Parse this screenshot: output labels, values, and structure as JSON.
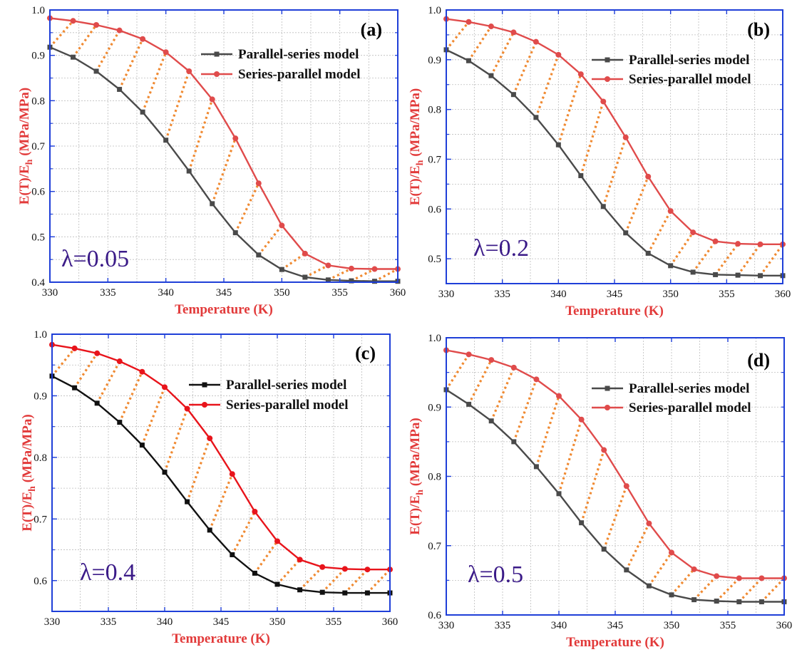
{
  "figure": {
    "colors": {
      "frame": "#1f3fd8",
      "parallel_series_dark": "#4a4a4a",
      "parallel_series_black": "#111111",
      "series_parallel_light": "#e04b4b",
      "series_parallel_bright": "#e8141b",
      "axis_title": "#e23a3a",
      "connector": "#f08a32",
      "lambda_text": "#3b1b88"
    }
  },
  "chart_data": [
    {
      "type": "line",
      "panel_label": "(a)",
      "lambda_label": "λ=0.05",
      "xlabel": "Temperature (K)",
      "ylabel_main": "E(T)/E",
      "ylabel_sub": "h",
      "ylabel_unit": " (MPa/MPa)",
      "xlim": [
        330,
        360
      ],
      "ylim": [
        0.4,
        1.0
      ],
      "xticks": [
        330,
        335,
        340,
        345,
        350,
        355,
        360
      ],
      "yticks": [
        0.4,
        0.5,
        0.6,
        0.7,
        0.8,
        0.9,
        1.0
      ],
      "yticks_minor": [
        0.4,
        0.45,
        0.5,
        0.55,
        0.6,
        0.65,
        0.7,
        0.75,
        0.8,
        0.85,
        0.9,
        0.95,
        1.0
      ],
      "grid": true,
      "legend_position": "top-right",
      "x": [
        330,
        332,
        334,
        336,
        338,
        340,
        342,
        344,
        346,
        348,
        350,
        352,
        354,
        356,
        358,
        360
      ],
      "series": [
        {
          "name": "Parallel-series model",
          "marker": "square",
          "color_key": "parallel_series_dark",
          "values": [
            0.918,
            0.896,
            0.865,
            0.825,
            0.775,
            0.713,
            0.645,
            0.573,
            0.509,
            0.46,
            0.428,
            0.411,
            0.405,
            0.403,
            0.402,
            0.402
          ]
        },
        {
          "name": "Series-parallel model",
          "marker": "circle",
          "color_key": "series_parallel_light",
          "values": [
            0.982,
            0.976,
            0.967,
            0.955,
            0.936,
            0.907,
            0.865,
            0.803,
            0.717,
            0.618,
            0.525,
            0.463,
            0.437,
            0.43,
            0.429,
            0.429
          ]
        }
      ]
    },
    {
      "type": "line",
      "panel_label": "(b)",
      "lambda_label": "λ=0.2",
      "xlabel": "Temperature (K)",
      "ylabel_main": "E(T)/E",
      "ylabel_sub": "h",
      "ylabel_unit": " (MPa/MPa)",
      "xlim": [
        330,
        360
      ],
      "ylim": [
        0.45,
        1.0
      ],
      "xticks": [
        330,
        335,
        340,
        345,
        350,
        355,
        360
      ],
      "yticks": [
        0.5,
        0.6,
        0.7,
        0.8,
        0.9,
        1.0
      ],
      "yticks_minor": [
        0.5,
        0.55,
        0.6,
        0.65,
        0.7,
        0.75,
        0.8,
        0.85,
        0.9,
        0.95,
        1.0
      ],
      "grid": true,
      "legend_position": "top-right",
      "x": [
        330,
        332,
        334,
        336,
        338,
        340,
        342,
        344,
        346,
        348,
        350,
        352,
        354,
        356,
        358,
        360
      ],
      "series": [
        {
          "name": "Parallel-series model",
          "marker": "square",
          "color_key": "parallel_series_dark",
          "values": [
            0.92,
            0.898,
            0.868,
            0.83,
            0.784,
            0.729,
            0.667,
            0.605,
            0.552,
            0.511,
            0.486,
            0.473,
            0.468,
            0.467,
            0.466,
            0.466
          ]
        },
        {
          "name": "Series-parallel model",
          "marker": "circle",
          "color_key": "series_parallel_light",
          "values": [
            0.982,
            0.976,
            0.967,
            0.955,
            0.936,
            0.91,
            0.871,
            0.816,
            0.744,
            0.665,
            0.596,
            0.553,
            0.535,
            0.53,
            0.529,
            0.529
          ]
        }
      ]
    },
    {
      "type": "line",
      "panel_label": "(c)",
      "lambda_label": "λ=0.4",
      "xlabel": "Temperature (K)",
      "ylabel_main": "E(T)/E",
      "ylabel_sub": "h",
      "ylabel_unit": " (MPa/MPa)",
      "xlim": [
        330,
        360
      ],
      "ylim": [
        0.55,
        1.0
      ],
      "xticks": [
        330,
        335,
        340,
        345,
        350,
        355,
        360
      ],
      "yticks": [
        0.6,
        0.7,
        0.8,
        0.9,
        1.0
      ],
      "yticks_minor": [
        0.55,
        0.6,
        0.65,
        0.7,
        0.75,
        0.8,
        0.85,
        0.9,
        0.95,
        1.0
      ],
      "grid": true,
      "legend_position": "top-right",
      "x": [
        330,
        332,
        334,
        336,
        338,
        340,
        342,
        344,
        346,
        348,
        350,
        352,
        354,
        356,
        358,
        360
      ],
      "series": [
        {
          "name": "Parallel-series model",
          "marker": "square",
          "color_key": "parallel_series_black",
          "values": [
            0.932,
            0.913,
            0.888,
            0.857,
            0.82,
            0.776,
            0.728,
            0.682,
            0.642,
            0.612,
            0.594,
            0.585,
            0.581,
            0.58,
            0.58,
            0.58
          ]
        },
        {
          "name": "Series-parallel model",
          "marker": "circle",
          "color_key": "series_parallel_bright",
          "values": [
            0.983,
            0.977,
            0.969,
            0.956,
            0.939,
            0.914,
            0.879,
            0.831,
            0.773,
            0.712,
            0.664,
            0.634,
            0.622,
            0.619,
            0.618,
            0.618
          ]
        }
      ]
    },
    {
      "type": "line",
      "panel_label": "(d)",
      "lambda_label": "λ=0.5",
      "xlabel": "Temperature (K)",
      "ylabel_main": "E(T)/E",
      "ylabel_sub": "h",
      "ylabel_unit": " (MPa/MPa)",
      "xlim": [
        330,
        360
      ],
      "ylim": [
        0.6,
        1.0
      ],
      "xticks": [
        330,
        335,
        340,
        345,
        350,
        355,
        360
      ],
      "yticks": [
        0.6,
        0.7,
        0.8,
        0.9,
        1.0
      ],
      "yticks_minor": [
        0.6,
        0.65,
        0.7,
        0.75,
        0.8,
        0.85,
        0.9,
        0.95,
        1.0
      ],
      "grid": true,
      "legend_position": "top-right",
      "x": [
        330,
        332,
        334,
        336,
        338,
        340,
        342,
        344,
        346,
        348,
        350,
        352,
        354,
        356,
        358,
        360
      ],
      "series": [
        {
          "name": "Parallel-series model",
          "marker": "square",
          "color_key": "parallel_series_dark",
          "values": [
            0.925,
            0.904,
            0.88,
            0.85,
            0.814,
            0.775,
            0.733,
            0.695,
            0.665,
            0.642,
            0.629,
            0.622,
            0.62,
            0.619,
            0.619,
            0.619
          ]
        },
        {
          "name": "Series-parallel model",
          "marker": "circle",
          "color_key": "series_parallel_light",
          "values": [
            0.982,
            0.976,
            0.968,
            0.957,
            0.94,
            0.916,
            0.882,
            0.838,
            0.786,
            0.732,
            0.69,
            0.666,
            0.656,
            0.653,
            0.653,
            0.653
          ]
        }
      ]
    }
  ]
}
